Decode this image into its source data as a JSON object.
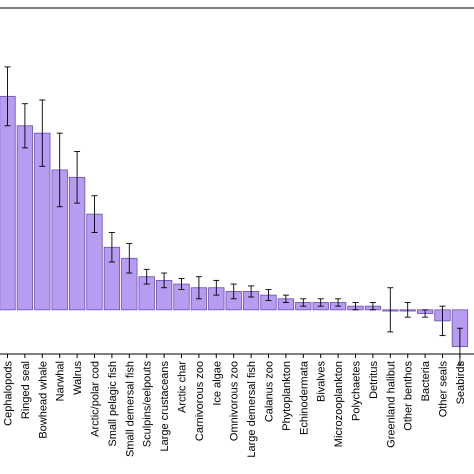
{
  "chart_data": {
    "type": "bar",
    "title": "",
    "xlabel": "",
    "ylabel": "",
    "categories": [
      "Cephalopods",
      "Ringed seal",
      "Bowhead whale",
      "Narwhal",
      "Walrus",
      "Arctic/polar cod",
      "Small pelagic fish",
      "Small demersal fish",
      "Sculpins/eelpouts",
      "Large crustaceans",
      "Arctic char",
      "Carnivorous zoo",
      "Ice algae",
      "Omnivorous zoo",
      "Large demersal fish",
      "Calanus zoo",
      "Phytoplankton",
      "Echinodermata",
      "Bivalves",
      "Microzooplankton",
      "Polychaetes",
      "Detritus",
      "Greenland halibut",
      "Other benthos",
      "Bacteria",
      "Other seals",
      "Seabirds"
    ],
    "values": [
      0.58,
      0.5,
      0.48,
      0.38,
      0.36,
      0.26,
      0.17,
      0.14,
      0.09,
      0.08,
      0.07,
      0.06,
      0.06,
      0.05,
      0.05,
      0.04,
      0.03,
      0.02,
      0.02,
      0.02,
      0.01,
      0.01,
      0.0,
      0.0,
      -0.01,
      -0.03,
      -0.1
    ],
    "errors": [
      0.08,
      0.06,
      0.09,
      0.1,
      0.07,
      0.05,
      0.04,
      0.04,
      0.02,
      0.02,
      0.015,
      0.03,
      0.02,
      0.02,
      0.015,
      0.015,
      0.01,
      0.01,
      0.01,
      0.01,
      0.01,
      0.01,
      0.06,
      0.02,
      0.01,
      0.04,
      0.05
    ],
    "ylim": [
      -0.12,
      0.82
    ],
    "grid": false,
    "colors": {
      "bar_fill": "#b79cf2",
      "bar_edge": "#6a4fb3"
    }
  }
}
